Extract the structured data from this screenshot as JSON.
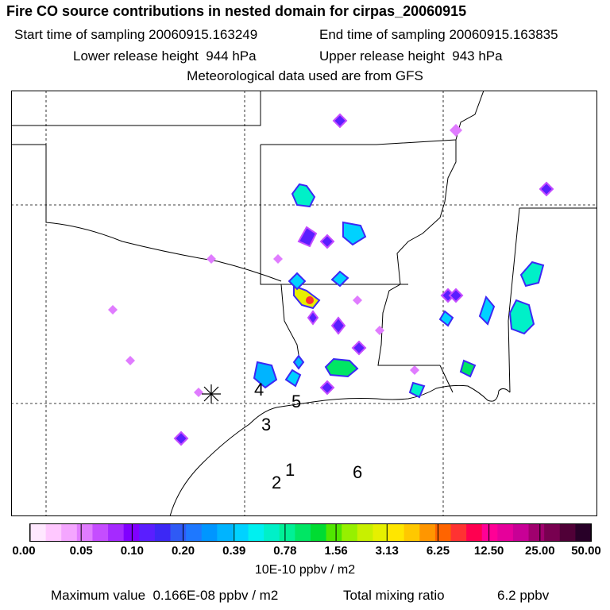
{
  "header": {
    "title": "Fire CO source contributions in nested domain for cirpas_20060915",
    "start_label": "Start time of sampling 20060915.163249",
    "end_label": "End time of sampling 20060915.163835",
    "lower_label": "Lower release height  944 hPa",
    "upper_label": "Upper release height  943 hPa",
    "met_label": "Meteorological data used are from GFS"
  },
  "map": {
    "site_labels": [
      "1",
      "2",
      "3",
      "4",
      "5",
      "6"
    ]
  },
  "colorbar": {
    "tick_labels": [
      "0.00",
      "0.05",
      "0.10",
      "0.20",
      "0.39",
      "0.78",
      "1.56",
      "3.13",
      "6.25",
      "12.50",
      "25.00",
      "50.00"
    ],
    "units": "10E-10 ppbv / m2",
    "colors": [
      "#ffe8ff",
      "#ffc8ff",
      "#f4a6ff",
      "#e07cff",
      "#c54dff",
      "#a52aff",
      "#8000ff",
      "#5a1eff",
      "#3c28f5",
      "#2f5af5",
      "#1e78ff",
      "#0096ff",
      "#00b4ff",
      "#00d2ff",
      "#00f0f0",
      "#00f0c8",
      "#00f096",
      "#00e664",
      "#00dc32",
      "#50e600",
      "#96f000",
      "#c8f000",
      "#e6f000",
      "#ffe600",
      "#ffc800",
      "#ff9600",
      "#ff6400",
      "#ff3232",
      "#ff0050",
      "#ff0096",
      "#e6009b",
      "#c80096",
      "#a0006e",
      "#780050",
      "#500037",
      "#280028"
    ]
  },
  "footer": {
    "max_label": "Maximum value  0.166E-08 ppbv / m2",
    "total_label": "Total mixing ratio",
    "total_value": "6.2 ppbv"
  }
}
